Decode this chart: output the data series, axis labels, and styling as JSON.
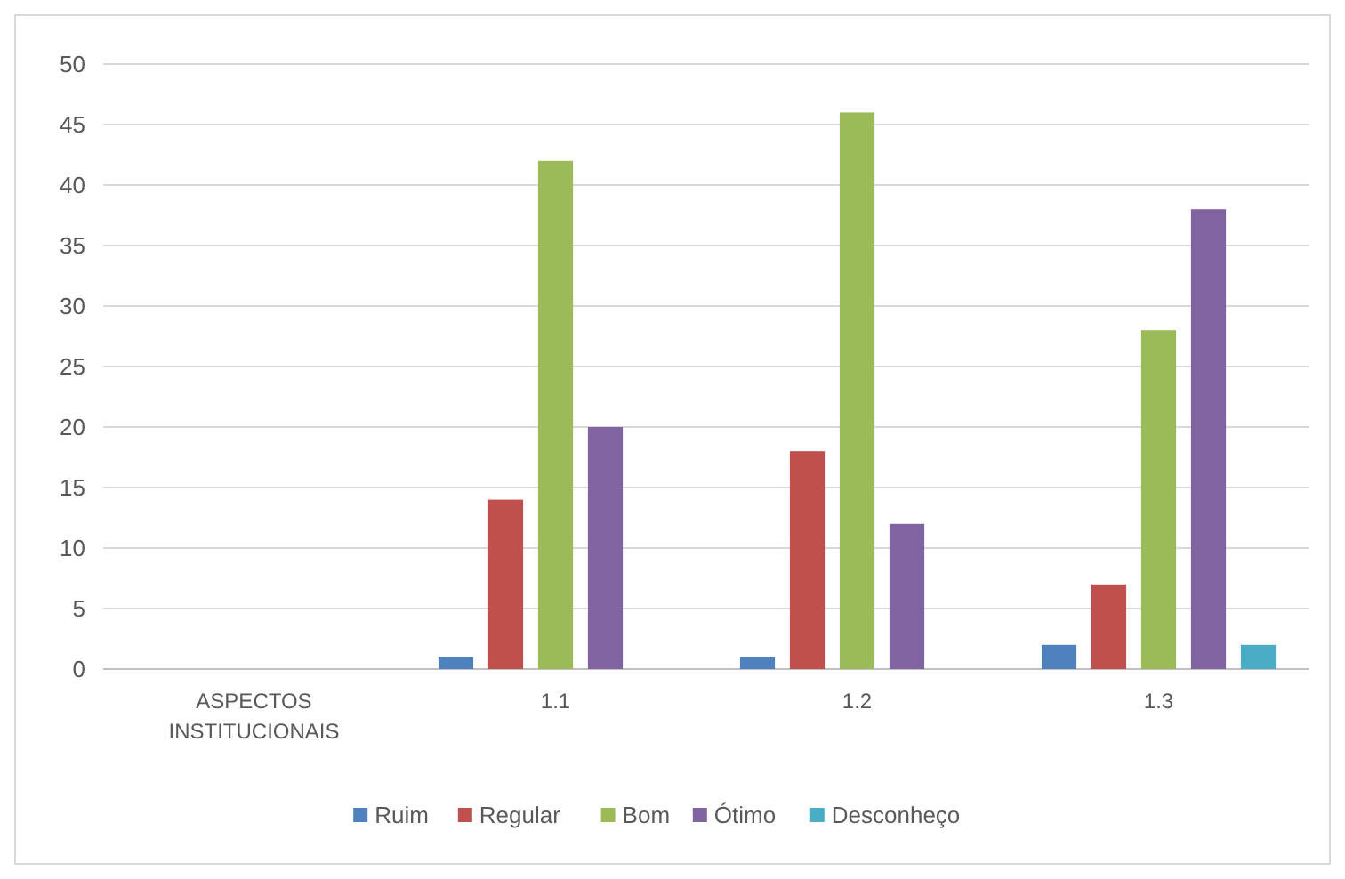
{
  "chart_data": {
    "type": "bar",
    "categories": [
      "ASPECTOS INSTITUCIONAIS",
      "1.1",
      "1.2",
      "1.3"
    ],
    "series": [
      {
        "name": "Ruim",
        "color": "#4f81bd",
        "values": [
          null,
          1,
          1,
          2
        ]
      },
      {
        "name": "Regular",
        "color": "#c0504d",
        "values": [
          null,
          14,
          18,
          7
        ]
      },
      {
        "name": "Bom",
        "color": "#9bbb59",
        "values": [
          null,
          42,
          46,
          28
        ]
      },
      {
        "name": "Ótimo",
        "color": "#8064a2",
        "values": [
          null,
          20,
          12,
          38
        ]
      },
      {
        "name": "Desconheço",
        "color": "#4bacc6",
        "values": [
          null,
          0,
          0,
          2
        ]
      }
    ],
    "ylim": [
      0,
      50
    ],
    "yticks": [
      0,
      5,
      10,
      15,
      20,
      25,
      30,
      35,
      40,
      45,
      50
    ],
    "grid": "y",
    "legend": "bottom"
  }
}
